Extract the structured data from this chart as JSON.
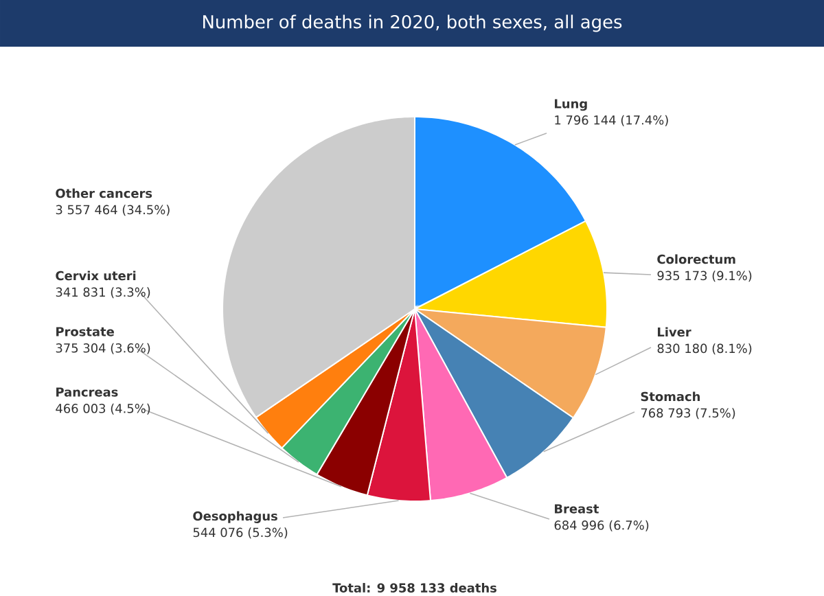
{
  "chart_data": {
    "type": "pie",
    "title": "Number of deaths in 2020, both sexes, all ages",
    "categories": [
      "Lung",
      "Colorectum",
      "Liver",
      "Stomach",
      "Breast",
      "Oesophagus",
      "Pancreas",
      "Prostate",
      "Cervix uteri",
      "Other cancers"
    ],
    "values": [
      1796144,
      935173,
      830180,
      768793,
      684996,
      544076,
      466003,
      375304,
      341831,
      3557464
    ],
    "colors": [
      "#1e90ff",
      "#ffd700",
      "#f4a95c",
      "#4682b4",
      "#ff69b4",
      "#dc143c",
      "#8b0000",
      "#3cb371",
      "#ff7f0e",
      "#cccccc"
    ],
    "value_labels": [
      "1 796 144 (17.4%)",
      "935 173 (9.1%)",
      "830 180 (8.1%)",
      "768 793 (7.5%)",
      "684 996 (6.7%)",
      "544 076 (5.3%)",
      "466 003 (4.5%)",
      "375 304 (3.6%)",
      "341 831 (3.3%)",
      "3 557 464 (34.5%)"
    ],
    "annotations": [
      "Total: 9 958 133 deaths"
    ]
  }
}
